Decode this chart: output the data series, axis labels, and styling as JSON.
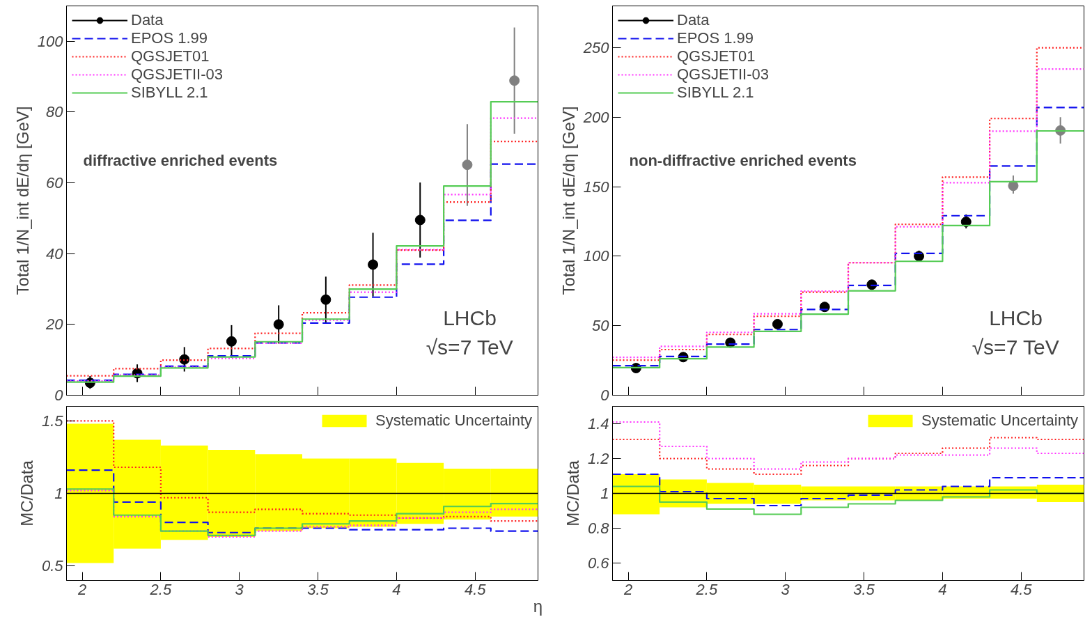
{
  "chart_data": [
    {
      "type": "histogram",
      "ylabel": "Total 1/N_int dE/dη [GeV]",
      "bins": [
        1.9,
        2.2,
        2.5,
        2.8,
        3.1,
        3.4,
        3.7,
        4.0,
        4.3,
        4.6,
        4.9
      ],
      "xlim": [
        1.9,
        4.9
      ],
      "xticks": [
        2,
        2.5,
        3,
        3.5,
        4,
        4.5
      ],
      "ylim": [
        0,
        110
      ],
      "yticks": [
        0,
        20,
        40,
        60,
        80,
        100
      ],
      "tick_labels": "y",
      "legend": "top left",
      "grid": false,
      "annotations": [
        "diffractive enriched events",
        "LHCb",
        "√s=7 TeV"
      ],
      "series": [
        {
          "name": "Data",
          "type": "scatter",
          "marker": "circle",
          "x": [
            2.05,
            2.35,
            2.65,
            2.95,
            3.25,
            3.55,
            3.85,
            4.15,
            4.45,
            4.75
          ],
          "values": [
            3.5,
            6.2,
            10.1,
            15.2,
            20.0,
            27.0,
            36.9,
            49.5,
            65.1,
            88.9
          ],
          "colors": [
            "#000000",
            "#000000",
            "#000000",
            "#000000",
            "#000000",
            "#000000",
            "#000000",
            "#000000",
            "#808080",
            "#808080"
          ],
          "errors": [
            [
              1.8,
              5.4
            ],
            [
              3.7,
              8.7
            ],
            [
              6.7,
              13.6
            ],
            [
              10.6,
              19.8
            ],
            [
              14.6,
              25.4
            ],
            [
              20.5,
              33.5
            ],
            [
              27.9,
              45.9
            ],
            [
              38.9,
              60.1
            ],
            [
              53.5,
              76.6
            ],
            [
              73.9,
              103.9
            ]
          ]
        },
        {
          "name": "EPOS 1.99",
          "color": "#1010ee",
          "line_style": "dashed",
          "values": [
            4.2,
            5.9,
            8.2,
            11.1,
            14.8,
            20.4,
            27.7,
            37.0,
            49.4,
            65.3
          ]
        },
        {
          "name": "QGSJET01",
          "color": "#ff2020",
          "line_style": "dotted",
          "values": [
            5.5,
            7.5,
            9.9,
            13.2,
            17.5,
            23.3,
            31.1,
            41.0,
            54.6,
            71.7
          ]
        },
        {
          "name": "QGSJETII-03",
          "color": "#ff33ff",
          "line_style": "dotted",
          "values": [
            4.0,
            5.7,
            7.9,
            10.4,
            14.7,
            21.2,
            29.1,
            41.1,
            56.7,
            78.3
          ]
        },
        {
          "name": "SIBYLL 2.1",
          "color": "#55cc55",
          "line_style": "solid",
          "values": [
            3.7,
            5.4,
            7.7,
            10.8,
            15.1,
            21.5,
            30.0,
            42.2,
            59.1,
            82.9
          ]
        }
      ]
    },
    {
      "type": "histogram",
      "ylabel": "Total 1/N_int dE/dη [GeV]",
      "bins": [
        1.9,
        2.2,
        2.5,
        2.8,
        3.1,
        3.4,
        3.7,
        4.0,
        4.3,
        4.6,
        4.9
      ],
      "xlim": [
        1.9,
        4.9
      ],
      "xticks": [
        2,
        2.5,
        3,
        3.5,
        4,
        4.5
      ],
      "ylim": [
        0,
        280
      ],
      "yticks": [
        0,
        50,
        100,
        150,
        200,
        250
      ],
      "tick_labels": "y",
      "legend": "top left",
      "grid": false,
      "annotations": [
        "non-diffractive enriched events",
        "LHCb",
        "√s=7 TeV"
      ],
      "series": [
        {
          "name": "Data",
          "type": "scatter",
          "marker": "circle",
          "x": [
            2.05,
            2.35,
            2.65,
            2.95,
            3.25,
            3.55,
            3.85,
            4.15,
            4.45,
            4.75
          ],
          "values": [
            19.5,
            27.4,
            37.8,
            51.1,
            63.5,
            79.5,
            100.0,
            124.7,
            150.6,
            190.4
          ],
          "colors": [
            "#000000",
            "#000000",
            "#000000",
            "#000000",
            "#000000",
            "#000000",
            "#000000",
            "#000000",
            "#808080",
            "#808080"
          ],
          "errors": [
            null,
            null,
            null,
            null,
            null,
            [
              78,
              82
            ],
            [
              97,
              104
            ],
            [
              120,
              130
            ],
            [
              145,
              158
            ],
            [
              181,
              200
            ]
          ]
        },
        {
          "name": "EPOS 1.99",
          "color": "#1010ee",
          "line_style": "dashed",
          "values": [
            21.2,
            27.9,
            36.8,
            47.2,
            61.7,
            79.0,
            102.0,
            129.1,
            164.9,
            206.9
          ]
        },
        {
          "name": "QGSJET01",
          "color": "#ff2020",
          "line_style": "dotted",
          "values": [
            25.2,
            32.8,
            43.7,
            56.8,
            74.1,
            95.3,
            122.9,
            156.8,
            199.0,
            249.9
          ]
        },
        {
          "name": "QGSJETII-03",
          "color": "#ff33ff",
          "line_style": "dotted",
          "values": [
            27.2,
            35.1,
            45.2,
            58.5,
            74.8,
            95.3,
            121.2,
            152.8,
            189.9,
            234.6
          ]
        },
        {
          "name": "SIBYLL 2.1",
          "color": "#55cc55",
          "line_style": "solid",
          "values": [
            19.8,
            26.2,
            34.6,
            45.9,
            58.3,
            75.1,
            96.3,
            122.0,
            153.6,
            190.1
          ]
        }
      ]
    },
    {
      "type": "histogram",
      "ylabel": "MC/Data",
      "xlabel": "η",
      "bins": [
        1.9,
        2.2,
        2.5,
        2.8,
        3.1,
        3.4,
        3.7,
        4.0,
        4.3,
        4.6,
        4.9
      ],
      "xlim": [
        1.9,
        4.9
      ],
      "xticks": [
        2,
        2.5,
        3,
        3.5,
        4,
        4.5
      ],
      "ylim": [
        0.4,
        1.6
      ],
      "yticks": [
        0.5,
        1,
        1.5
      ],
      "legend": "top right",
      "grid": false,
      "ref_lines": [
        {
          "axis": "y",
          "value": 1,
          "color": "#000000"
        }
      ],
      "series": [
        {
          "name": "Systematic Uncertainty",
          "type": "bar",
          "color": "#ffff00",
          "x": [
            2.05,
            2.35,
            2.65,
            2.95,
            3.25,
            3.55,
            3.85,
            4.15,
            4.45,
            4.75
          ],
          "base": [
            0.52,
            0.62,
            0.68,
            0.7,
            0.74,
            0.76,
            0.77,
            0.79,
            0.82,
            0.84
          ],
          "values": [
            0.96,
            0.75,
            0.65,
            0.6,
            0.53,
            0.48,
            0.47,
            0.42,
            0.35,
            0.33
          ]
        },
        {
          "color": "#1010ee",
          "line_style": "dashed",
          "values": [
            1.16,
            0.94,
            0.8,
            0.73,
            0.76,
            0.76,
            0.75,
            0.75,
            0.76,
            0.74
          ]
        },
        {
          "color": "#ff2020",
          "line_style": "dotted",
          "values": [
            1.5,
            1.18,
            0.97,
            0.87,
            0.89,
            0.86,
            0.85,
            0.83,
            0.84,
            0.81
          ]
        },
        {
          "color": "#ff33ff",
          "line_style": "dotted",
          "values": [
            1.02,
            0.84,
            0.74,
            0.7,
            0.74,
            0.77,
            0.78,
            0.83,
            0.87,
            0.89
          ]
        },
        {
          "color": "#55cc55",
          "line_style": "solid",
          "values": [
            1.03,
            0.85,
            0.74,
            0.71,
            0.76,
            0.79,
            0.81,
            0.86,
            0.91,
            0.93
          ]
        }
      ]
    },
    {
      "type": "histogram",
      "ylabel": "MC/Data",
      "bins": [
        1.9,
        2.2,
        2.5,
        2.8,
        3.1,
        3.4,
        3.7,
        4.0,
        4.3,
        4.6,
        4.9
      ],
      "xlim": [
        1.9,
        4.9
      ],
      "xticks": [
        2,
        2.5,
        3,
        3.5,
        4,
        4.5
      ],
      "ylim": [
        0.5,
        1.5
      ],
      "yticks": [
        0.6,
        0.8,
        1,
        1.2,
        1.4
      ],
      "legend": "top right",
      "grid": false,
      "ref_lines": [
        {
          "axis": "y",
          "value": 1,
          "color": "#000000"
        }
      ],
      "series": [
        {
          "name": "Systematic Uncertainty",
          "type": "bar",
          "color": "#ffff00",
          "x": [
            2.05,
            2.35,
            2.65,
            2.95,
            3.25,
            3.55,
            3.85,
            4.15,
            4.45,
            4.75
          ],
          "base": [
            0.88,
            0.92,
            0.94,
            0.94,
            0.96,
            0.96,
            0.96,
            0.97,
            0.97,
            0.95
          ],
          "values": [
            0.23,
            0.16,
            0.12,
            0.11,
            0.08,
            0.08,
            0.08,
            0.07,
            0.07,
            0.1
          ]
        },
        {
          "color": "#1010ee",
          "line_style": "dashed",
          "values": [
            1.11,
            1.01,
            0.97,
            0.93,
            0.97,
            0.99,
            1.02,
            1.04,
            1.09,
            1.09
          ]
        },
        {
          "color": "#ff2020",
          "line_style": "dotted",
          "values": [
            1.31,
            1.2,
            1.14,
            1.11,
            1.16,
            1.2,
            1.23,
            1.26,
            1.32,
            1.31
          ]
        },
        {
          "color": "#ff33ff",
          "line_style": "dotted",
          "values": [
            1.41,
            1.27,
            1.2,
            1.14,
            1.18,
            1.2,
            1.22,
            1.22,
            1.26,
            1.23
          ]
        },
        {
          "color": "#55cc55",
          "line_style": "solid",
          "values": [
            1.04,
            0.95,
            0.91,
            0.88,
            0.92,
            0.94,
            0.96,
            0.98,
            1.02,
            1.0
          ]
        }
      ]
    }
  ]
}
